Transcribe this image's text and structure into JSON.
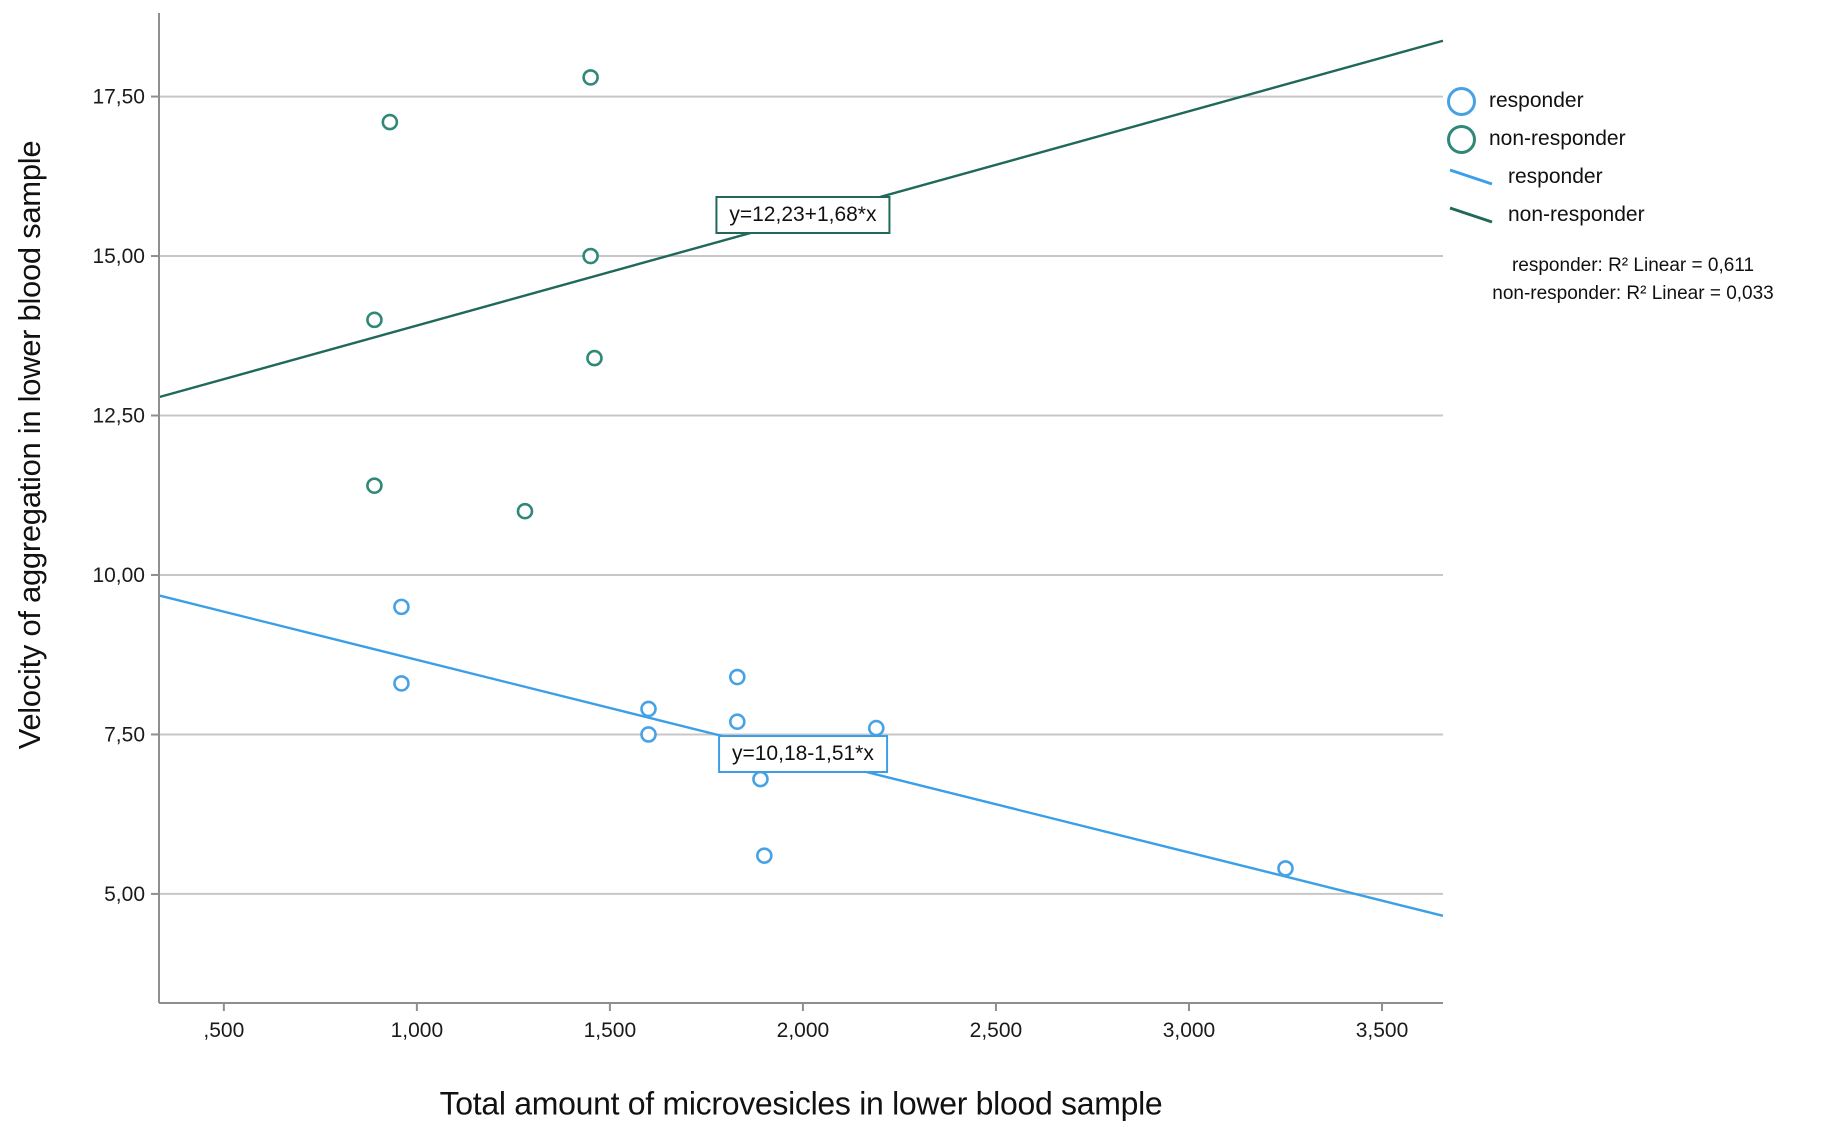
{
  "chart_data": {
    "type": "scatter",
    "title": "",
    "xlabel": "Total amount of microvesicles in lower blood sample",
    "ylabel": "Velocity of aggregation in lower blood sample",
    "xlim": [
      0.332,
      3.658
    ],
    "ylim": [
      3.29,
      18.81
    ],
    "grid": "horizontal-only",
    "gridline_color": "#c7c7c7",
    "axis_color": "#8f8f8f",
    "x_ticks": [
      {
        "value": 0.5,
        "label": ",500"
      },
      {
        "value": 1.0,
        "label": "1,000"
      },
      {
        "value": 1.5,
        "label": "1,500"
      },
      {
        "value": 2.0,
        "label": "2,000"
      },
      {
        "value": 2.5,
        "label": "2,500"
      },
      {
        "value": 3.0,
        "label": "3,000"
      },
      {
        "value": 3.5,
        "label": "3,500"
      }
    ],
    "y_ticks": [
      {
        "value": 5.0,
        "label": "5,00"
      },
      {
        "value": 7.5,
        "label": "7,50"
      },
      {
        "value": 10.0,
        "label": "10,00"
      },
      {
        "value": 12.5,
        "label": "12,50"
      },
      {
        "value": 15.0,
        "label": "15,00"
      },
      {
        "value": 17.5,
        "label": "17,50"
      }
    ],
    "series": [
      {
        "name": "responder",
        "kind": "scatter",
        "color": "#47a2e5",
        "points": [
          [
            0.96,
            9.5
          ],
          [
            0.96,
            8.3
          ],
          [
            1.6,
            7.9
          ],
          [
            1.6,
            7.5
          ],
          [
            1.83,
            8.4
          ],
          [
            1.83,
            7.7
          ],
          [
            1.89,
            6.8
          ],
          [
            1.9,
            5.6
          ],
          [
            2.19,
            7.6
          ],
          [
            3.25,
            5.4
          ]
        ]
      },
      {
        "name": "non-responder",
        "kind": "scatter",
        "color": "#2f8878",
        "points": [
          [
            0.93,
            17.1
          ],
          [
            1.45,
            17.8
          ],
          [
            0.89,
            14.0
          ],
          [
            1.45,
            15.0
          ],
          [
            1.46,
            13.4
          ],
          [
            0.89,
            11.4
          ],
          [
            1.28,
            11.0
          ]
        ]
      },
      {
        "name": "responder",
        "kind": "line",
        "color": "#3b9fe8",
        "slope": -1.51,
        "intercept": 10.18,
        "equation": "y=10,18-1,51*x",
        "label_x": 2.0,
        "label_y": 7.2
      },
      {
        "name": "non-responder",
        "kind": "line",
        "color": "#20695a",
        "slope": 1.68,
        "intercept": 12.23,
        "equation": "y=12,23+1,68*x",
        "label_x": 2.0,
        "label_y": 15.65
      }
    ],
    "annotations": [
      "responder: R² Linear = 0,611",
      "non-responder: R² Linear = 0,033"
    ]
  },
  "legend": {
    "items": [
      {
        "label": "responder",
        "swatch": "circle",
        "color": "#47a2e5"
      },
      {
        "label": "non-responder",
        "swatch": "circle",
        "color": "#2f8878"
      },
      {
        "label": "responder",
        "swatch": "line",
        "color": "#3b9fe8"
      },
      {
        "label": "non-responder",
        "swatch": "line",
        "color": "#20695a"
      }
    ]
  }
}
